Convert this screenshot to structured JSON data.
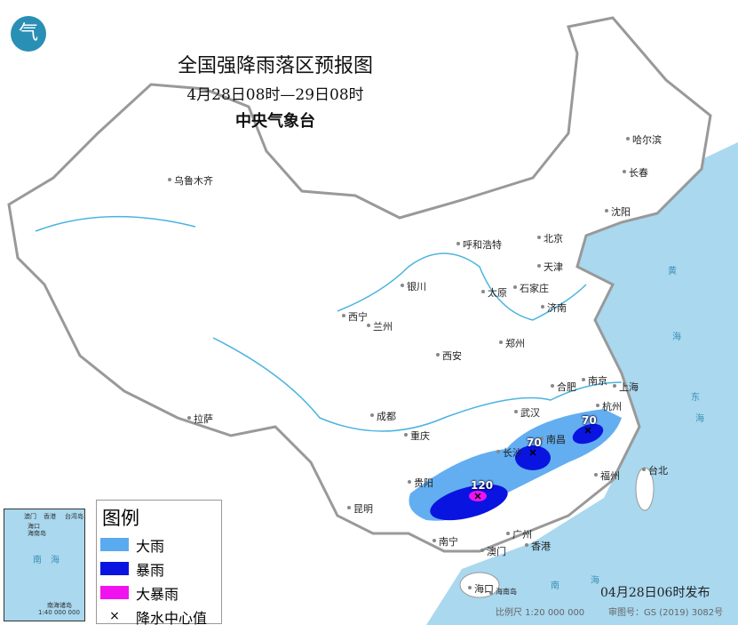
{
  "header": {
    "title": "全国强降雨落区预报图",
    "period": "4月28日08时—29日08时",
    "issuer": "中央气象台"
  },
  "logo": {
    "icon": "cma-logo",
    "text": "气"
  },
  "cities": [
    "乌鲁木齐",
    "哈尔滨",
    "长春",
    "沈阳",
    "呼和浩特",
    "北京",
    "天津",
    "石家庄",
    "太原",
    "济南",
    "银川",
    "西宁",
    "兰州",
    "郑州",
    "西安",
    "合肥",
    "南京",
    "上海",
    "武汉",
    "杭州",
    "成都",
    "重庆",
    "拉萨",
    "长沙",
    "南昌",
    "福州",
    "台北",
    "贵阳",
    "昆明",
    "南宁",
    "广州",
    "香港",
    "澳门",
    "海口",
    "海南岛"
  ],
  "seas": [
    "黄",
    "海",
    "东",
    "海",
    "南",
    "海"
  ],
  "rain_centers": [
    {
      "value": "120",
      "level": "大暴雨"
    },
    {
      "value": "70",
      "level": "暴雨"
    },
    {
      "value": "70",
      "level": "暴雨"
    }
  ],
  "legend": {
    "title": "图例",
    "items": [
      {
        "label": "大雨",
        "color": "#5aaaf0"
      },
      {
        "label": "暴雨",
        "color": "#0a14e0"
      },
      {
        "label": "大暴雨",
        "color": "#f013f0"
      },
      {
        "label": "降水中心值",
        "symbol": "×"
      }
    ]
  },
  "inset": {
    "labels": [
      "澳门",
      "香港",
      "台湾岛",
      "海口",
      "海南岛",
      "南　海",
      "南海诸岛"
    ],
    "scale": "1:40 000 000"
  },
  "footer": {
    "published": "04月28日06时发布",
    "scale": "比例尺 1:20 000 000",
    "approval": "审图号：GS (2019) 3082号"
  },
  "colors": {
    "sea": "#a9d8ef",
    "land": "#ffffff",
    "border": "#999999",
    "river": "#4ab3e0"
  }
}
